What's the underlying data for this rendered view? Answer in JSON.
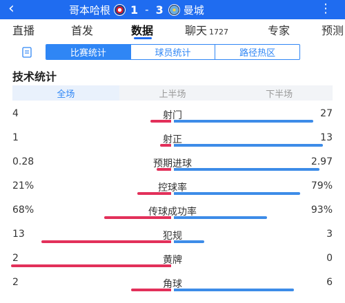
{
  "header": {
    "back_icon": "chevron-left-icon",
    "home_team": "哥本哈根",
    "home_score": "1",
    "separator": "-",
    "away_score": "3",
    "away_team": "曼城",
    "more_icon": "more-dots-icon",
    "background_color": "#1f6cf0"
  },
  "nav": {
    "tabs": [
      {
        "label": "直播",
        "badge": ""
      },
      {
        "label": "首发",
        "badge": ""
      },
      {
        "label": "数据",
        "badge": "",
        "active": true
      },
      {
        "label": "聊天",
        "badge": "1727"
      },
      {
        "label": "专家",
        "badge": ""
      },
      {
        "label": "预测",
        "badge": ""
      }
    ]
  },
  "subtabs": {
    "icon": "document-icon",
    "items": [
      "比赛统计",
      "球员统计",
      "路径热区"
    ],
    "active_index": 0
  },
  "section_title": "技术统计",
  "periods": {
    "items": [
      "全场",
      "上半场",
      "下半场"
    ],
    "active_index": 0
  },
  "colors": {
    "home_bar": "#e2305a",
    "away_bar": "#3d8ce8",
    "accent": "#2f86f5"
  },
  "stats": [
    {
      "label": "射门",
      "home": "4",
      "away": "27",
      "home_frac": 0.13,
      "away_frac": 0.87
    },
    {
      "label": "射正",
      "home": "1",
      "away": "13",
      "home_frac": 0.07,
      "away_frac": 0.93
    },
    {
      "label": "预期进球",
      "home": "0.28",
      "away": "2.97",
      "home_frac": 0.09,
      "away_frac": 0.91
    },
    {
      "label": "控球率",
      "home": "21%",
      "away": "79%",
      "home_frac": 0.21,
      "away_frac": 0.79
    },
    {
      "label": "传球成功率",
      "home": "68%",
      "away": "93%",
      "home_frac": 0.42,
      "away_frac": 0.58
    },
    {
      "label": "犯规",
      "home": "13",
      "away": "3",
      "home_frac": 0.81,
      "away_frac": 0.19
    },
    {
      "label": "黄牌",
      "home": "2",
      "away": "0",
      "home_frac": 1.0,
      "away_frac": 0.0
    },
    {
      "label": "角球",
      "home": "2",
      "away": "6",
      "home_frac": 0.25,
      "away_frac": 0.75
    }
  ]
}
